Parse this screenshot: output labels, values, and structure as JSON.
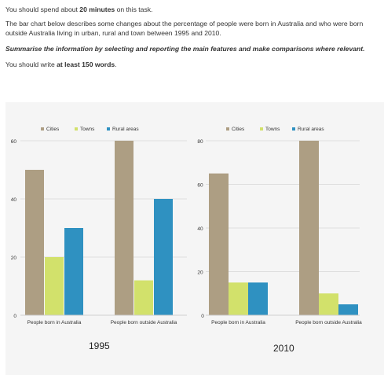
{
  "task": {
    "line1_pre": "You should spend about ",
    "line1_bold": "20 minutes",
    "line1_post": " on this task.",
    "description": "The bar chart below describes some changes about the percentage of people were born in Australia and who were born outside Australia living in urban, rural and town between 1995 and 2010.",
    "instruction": "Summarise the information by selecting and reporting the main features and make comparisons where relevant.",
    "words_pre": "You should write ",
    "words_bold": "at least 150 words",
    "words_post": "."
  },
  "colors": {
    "cities": "#ad9e83",
    "towns": "#d2e16b",
    "rural": "#2f91c1",
    "panel": "#f5f5f5",
    "grid": "#dedede"
  },
  "chart_data": [
    {
      "type": "bar",
      "title": "1995",
      "categories": [
        "People born in Australia",
        "People born outside Australia"
      ],
      "series": [
        {
          "name": "Cities",
          "values": [
            50,
            60
          ]
        },
        {
          "name": "Towns",
          "values": [
            20,
            12
          ]
        },
        {
          "name": "Rural areas",
          "values": [
            30,
            40
          ]
        }
      ],
      "ylim": [
        0,
        60
      ],
      "yticks": [
        0,
        20,
        40,
        60
      ],
      "legend": "top",
      "grid": true
    },
    {
      "type": "bar",
      "title": "2010",
      "categories": [
        "People born in Australia",
        "People born outside Australia"
      ],
      "series": [
        {
          "name": "Cities",
          "values": [
            65,
            80
          ]
        },
        {
          "name": "Towns",
          "values": [
            15,
            10
          ]
        },
        {
          "name": "Rural areas",
          "values": [
            15,
            5
          ]
        }
      ],
      "ylim": [
        0,
        80
      ],
      "yticks": [
        0,
        20,
        40,
        60,
        80
      ],
      "legend": "top",
      "grid": true
    }
  ]
}
